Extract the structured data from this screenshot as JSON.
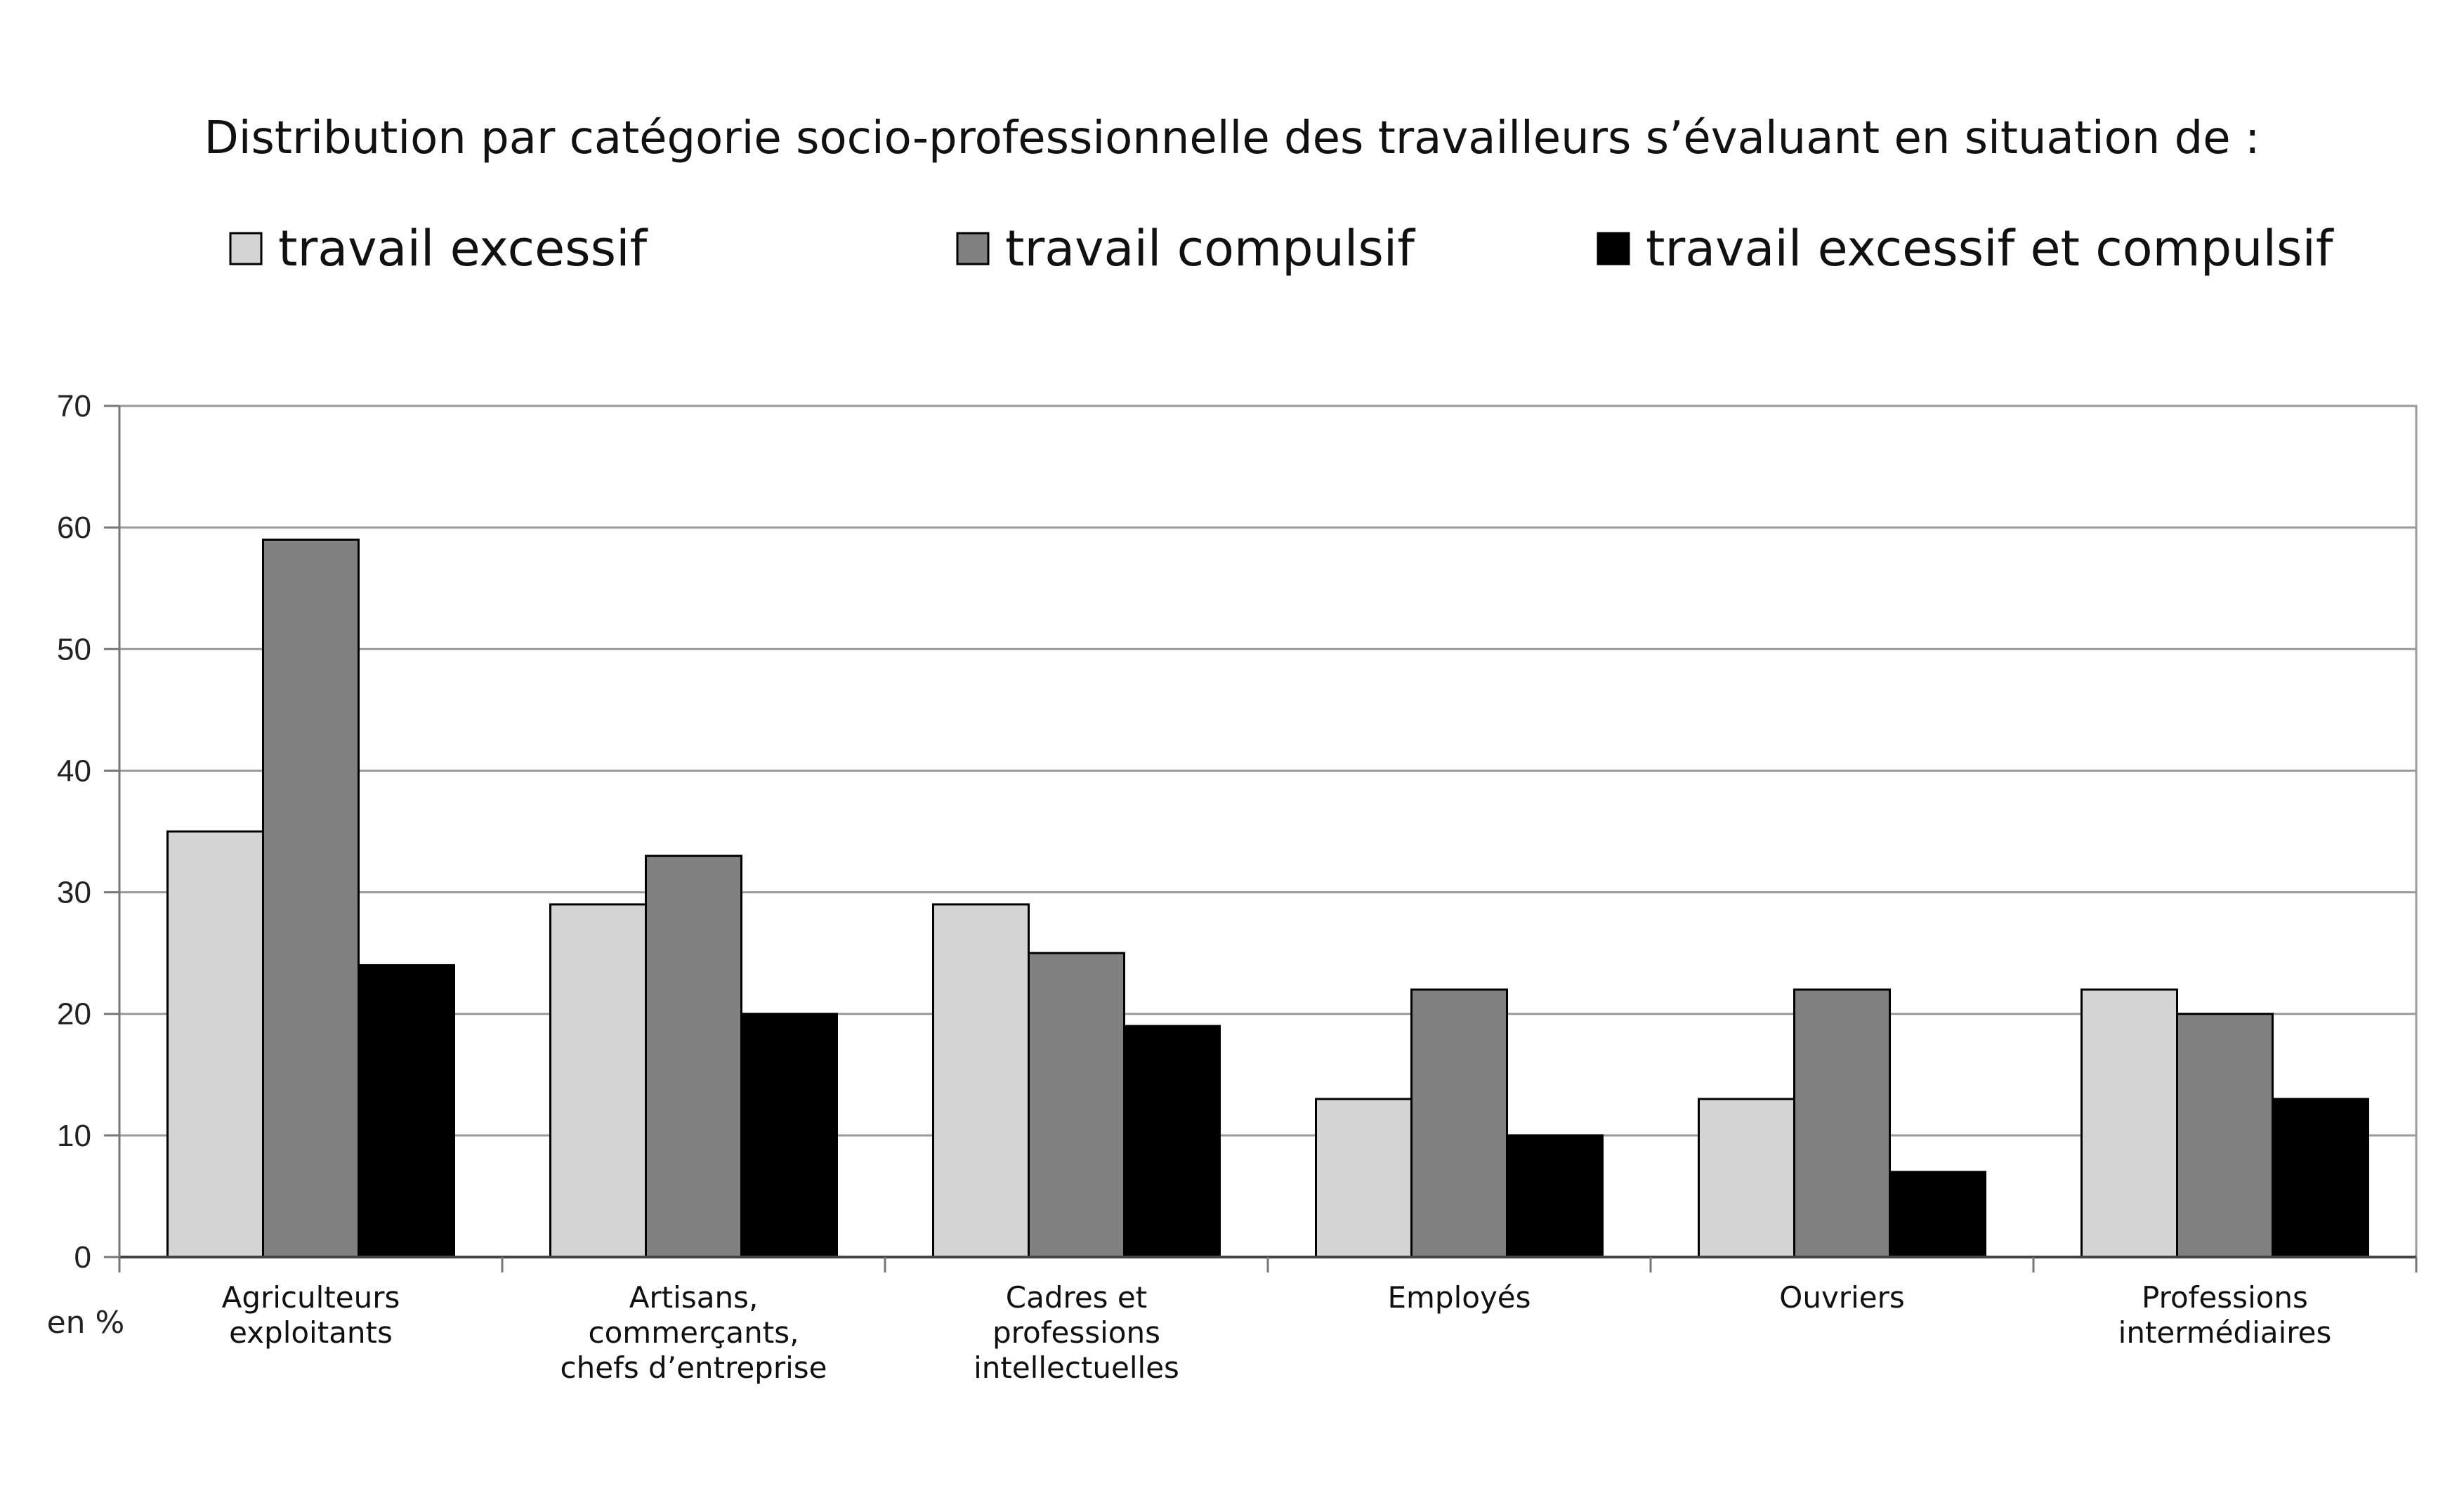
{
  "chart_data": {
    "type": "bar",
    "title": "Distribution par catégorie socio-professionnelle des travailleurs s’évaluant en situation de :",
    "xlabel": "",
    "ylabel": "",
    "unit_label": "en %",
    "ylim": [
      0,
      70
    ],
    "yticks": [
      "0",
      "10",
      "20",
      "30",
      "40",
      "50",
      "60",
      "70"
    ],
    "grid": true,
    "legend_position": "top",
    "categories": [
      [
        "Agriculteurs",
        "exploitants"
      ],
      [
        "Artisans,",
        "commerçants,",
        "chefs d’entreprise"
      ],
      [
        "Cadres et",
        "professions",
        "intellectuelles"
      ],
      [
        "Employés"
      ],
      [
        "Ouvriers"
      ],
      [
        "Professions",
        "intermédiaires"
      ]
    ],
    "series": [
      {
        "name": "travail excessif",
        "color": "#d4d4d4",
        "values": [
          35,
          29,
          29,
          13,
          13,
          22
        ]
      },
      {
        "name": "travail compulsif",
        "color": "#808080",
        "values": [
          59,
          33,
          25,
          22,
          22,
          20
        ]
      },
      {
        "name": "travail excessif et compulsif",
        "color": "#000000",
        "values": [
          24,
          20,
          19,
          10,
          7,
          13
        ]
      }
    ]
  }
}
